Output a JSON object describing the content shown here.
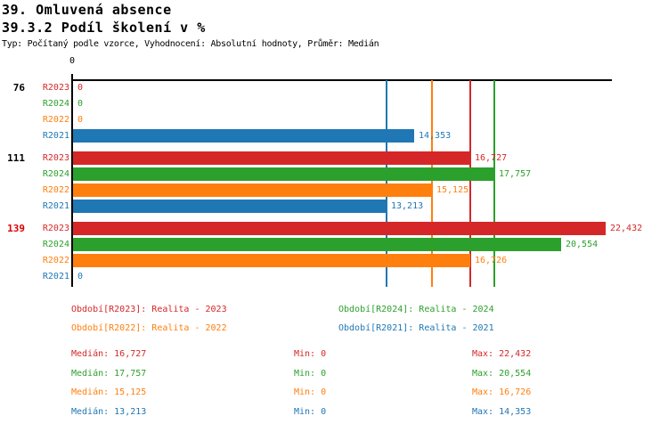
{
  "header": {
    "title1": "39. Omluvená absence",
    "title2": "39.3.2 Podíl školení v %",
    "subtitle": "Typ: Počítaný podle vzorce, Vyhodnocení: Absolutní hodnoty, Průměr: Medián"
  },
  "chart_data": {
    "type": "bar",
    "orientation": "horizontal",
    "title": "39.3.2 Podíl školení v %",
    "value_axis": {
      "min": 0,
      "max_estimated": 22695,
      "tick_labels": [
        "0"
      ],
      "origin_label": "0"
    },
    "series": [
      {
        "name": "R2023",
        "color": "#d62728",
        "median": 16727
      },
      {
        "name": "R2024",
        "color": "#2ca02c",
        "median": 17757
      },
      {
        "name": "R2022",
        "color": "#ff7f0e",
        "median": 15125
      },
      {
        "name": "R2021",
        "color": "#1f77b4",
        "median": 13213
      }
    ],
    "groups": [
      {
        "label": "76",
        "label_color": "#000000",
        "rows": [
          {
            "series": "R2023",
            "value": 0,
            "display": "0"
          },
          {
            "series": "R2024",
            "value": 0,
            "display": "0"
          },
          {
            "series": "R2022",
            "value": 0,
            "display": "0"
          },
          {
            "series": "R2021",
            "value": 14353,
            "display": "14,353"
          }
        ]
      },
      {
        "label": "111",
        "label_color": "#000000",
        "rows": [
          {
            "series": "R2023",
            "value": 16727,
            "display": "16,727"
          },
          {
            "series": "R2024",
            "value": 17757,
            "display": "17,757"
          },
          {
            "series": "R2022",
            "value": 15125,
            "display": "15,125"
          },
          {
            "series": "R2021",
            "value": 13213,
            "display": "13,213"
          }
        ]
      },
      {
        "label": "139",
        "label_color": "#dd0000",
        "rows": [
          {
            "series": "R2023",
            "value": 22432,
            "display": "22,432"
          },
          {
            "series": "R2024",
            "value": 20554,
            "display": "20,554"
          },
          {
            "series": "R2022",
            "value": 16726,
            "display": "16,726"
          },
          {
            "series": "R2021",
            "value": 0,
            "display": "0"
          }
        ]
      }
    ]
  },
  "legend": [
    {
      "series": "R2023",
      "label": "Období[R2023]: Realita - 2023",
      "color": "#d62728"
    },
    {
      "series": "R2024",
      "label": "Období[R2024]: Realita - 2024",
      "color": "#2ca02c"
    },
    {
      "series": "R2022",
      "label": "Období[R2022]: Realita - 2022",
      "color": "#ff7f0e"
    },
    {
      "series": "R2021",
      "label": "Období[R2021]: Realita - 2021",
      "color": "#1f77b4"
    }
  ],
  "stats": [
    {
      "series": "R2023",
      "color": "#d62728",
      "cells": [
        "Medián: 16,727",
        "Min: 0",
        "Max: 22,432"
      ]
    },
    {
      "series": "R2024",
      "color": "#2ca02c",
      "cells": [
        "Medián: 17,757",
        "Min: 0",
        "Max: 20,554"
      ]
    },
    {
      "series": "R2022",
      "color": "#ff7f0e",
      "cells": [
        "Medián: 15,125",
        "Min: 0",
        "Max: 16,726"
      ]
    },
    {
      "series": "R2021",
      "color": "#1f77b4",
      "cells": [
        "Medián: 13,213",
        "Min: 0",
        "Max: 14,353"
      ]
    }
  ]
}
